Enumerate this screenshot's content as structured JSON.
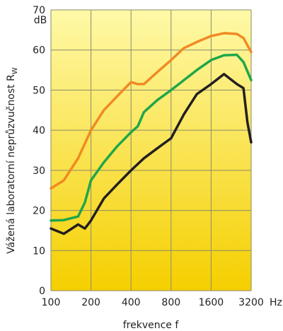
{
  "chart_data": {
    "type": "line",
    "title": "",
    "xlabel": "frekvence f",
    "ylabel": "Vážená laboratorní neprůzvučnost R",
    "ylabel_subscript": "W",
    "x_unit": "Hz",
    "y_unit": "dB",
    "x_scale": "log2",
    "xlim": [
      100,
      3200
    ],
    "ylim": [
      0,
      70
    ],
    "x_ticks": [
      "100",
      "200",
      "400",
      "800",
      "1600",
      "3200"
    ],
    "y_ticks": [
      "0",
      "10",
      "20",
      "30",
      "40",
      "50",
      "60",
      "70"
    ],
    "grid": true,
    "legend": "none",
    "background_gradient": [
      "#fff9a8",
      "#f5cf00"
    ],
    "grid_color": "#8a8a6a",
    "series": [
      {
        "color": "#f08a24",
        "x": [
          100,
          125,
          160,
          200,
          250,
          315,
          400,
          450,
          500,
          630,
          800,
          1000,
          1250,
          1600,
          2000,
          2500,
          2800,
          3200
        ],
        "y": [
          25.5,
          27.5,
          33,
          40,
          45,
          48.5,
          52,
          51.5,
          51.5,
          54.5,
          57.5,
          60.5,
          62,
          63.5,
          64.2,
          64,
          63,
          59.5
        ]
      },
      {
        "color": "#1fa64a",
        "x": [
          100,
          125,
          160,
          180,
          200,
          250,
          315,
          400,
          450,
          500,
          630,
          800,
          1000,
          1250,
          1600,
          2000,
          2500,
          2800,
          3200
        ],
        "y": [
          17.5,
          17.6,
          18.5,
          22,
          27.5,
          32,
          36,
          39.5,
          41,
          44.5,
          47.5,
          50,
          52.5,
          55,
          57.5,
          58.7,
          58.8,
          57,
          52.5
        ]
      },
      {
        "color": "#231f20",
        "x": [
          100,
          125,
          160,
          180,
          200,
          250,
          315,
          400,
          500,
          630,
          800,
          1000,
          1250,
          1600,
          2000,
          2500,
          2800,
          3000,
          3200
        ],
        "y": [
          15.5,
          14.2,
          16.5,
          15.5,
          17.5,
          23,
          26.5,
          30,
          33,
          35.5,
          38,
          44,
          49,
          51.5,
          54,
          51.5,
          50.5,
          42,
          37
        ]
      }
    ]
  }
}
